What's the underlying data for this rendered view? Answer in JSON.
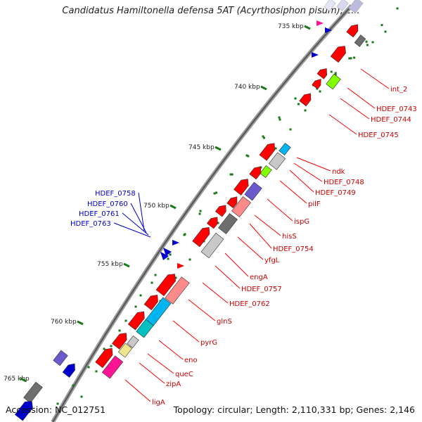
{
  "title": "Candidatus Hamiltonella defensa 5AT (Acyrthosiphon pisum), c...",
  "footer": {
    "accession": "Accession: NC_012751",
    "topology": "Topology: circular; Length: 2,110,331 bp; Genes: 2,146"
  },
  "colors": {
    "red": "#ff0000",
    "darkred": "#cc0000",
    "blue": "#0000cc",
    "pink": "#ff8a8a",
    "gray": "#c8c8c8",
    "darkgray": "#6e6e6e",
    "slate": "#6a5acd",
    "magenta": "#ff1493",
    "cyan": "#00b4f0",
    "teal": "#00c0c0",
    "yellow": "#f0e68c",
    "green": "#7fff00",
    "tick": "#1a7a1a"
  },
  "scale_labels": [
    "735 kbp",
    "740 kbp",
    "745 kbp",
    "750 kbp",
    "755 kbp",
    "760 kbp",
    "765 kbp"
  ],
  "red_labels": [
    "int_2",
    "HDEF_0743",
    "HDEF_0744",
    "HDEF_0745",
    "ndk",
    "HDEF_0748",
    "HDEF_0749",
    "pilF",
    "ispG",
    "hisS",
    "HDEF_0754",
    "yfgL",
    "engA",
    "HDEF_0757",
    "HDEF_0762",
    "glnS",
    "pyrG",
    "eno",
    "queC",
    "zipA",
    "ligA"
  ],
  "blue_labels": [
    "HDEF_0758",
    "HDEF_0760",
    "HDEF_0761",
    "HDEF_0763"
  ]
}
